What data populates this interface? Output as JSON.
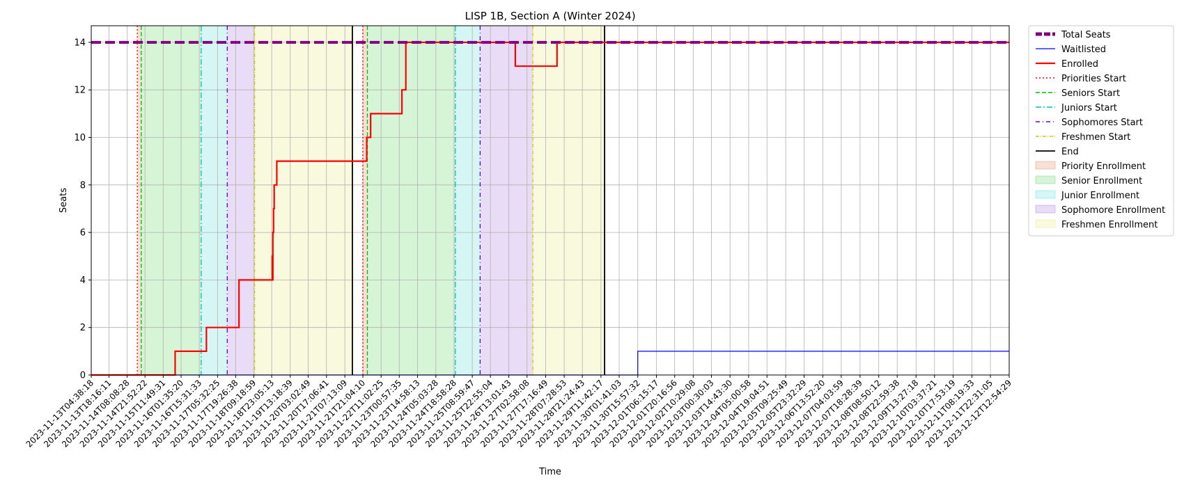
{
  "chart_data": {
    "type": "line",
    "title": "LISP 1B, Section A (Winter 2024)",
    "xlabel": "Time",
    "ylabel": "Seats",
    "ylim": [
      0,
      14.7
    ],
    "yticks": [
      0,
      2,
      4,
      6,
      8,
      10,
      12,
      14
    ],
    "xlim": [
      "2023-11-13T04:38:18",
      "2023-12-12T12:54:29"
    ],
    "grid": true,
    "legend_position": "outside-right",
    "xticks": [
      "2023-11-13T04:38:18",
      "2023-11-13T18:16:11",
      "2023-11-14T08:08:28",
      "2023-11-14T21:52:22",
      "2023-11-15T11:49:31",
      "2023-11-16T01:35:20",
      "2023-11-16T15:31:33",
      "2023-11-17T05:32:25",
      "2023-11-17T19:26:38",
      "2023-11-18T09:18:59",
      "2023-11-18T23:05:13",
      "2023-11-19T13:18:39",
      "2023-11-20T03:02:49",
      "2023-11-20T17:06:41",
      "2023-11-21T07:13:09",
      "2023-11-21T21:04:10",
      "2023-11-22T11:02:25",
      "2023-11-23T00:57:35",
      "2023-11-23T14:58:13",
      "2023-11-24T05:03:28",
      "2023-11-24T18:58:28",
      "2023-11-25T08:59:47",
      "2023-11-25T22:55:04",
      "2023-11-26T13:01:43",
      "2023-11-27T02:58:08",
      "2023-11-27T17:16:49",
      "2023-11-28T07:28:53",
      "2023-11-28T21:24:43",
      "2023-11-29T11:42:17",
      "2023-11-30T01:41:03",
      "2023-11-30T15:57:32",
      "2023-12-01T06:15:17",
      "2023-12-01T20:16:56",
      "2023-12-02T10:29:08",
      "2023-12-03T00:30:03",
      "2023-12-03T14:43:30",
      "2023-12-04T05:00:58",
      "2023-12-04T19:04:51",
      "2023-12-05T09:25:49",
      "2023-12-05T23:32:29",
      "2023-12-06T13:52:20",
      "2023-12-07T04:03:59",
      "2023-12-07T18:28:39",
      "2023-12-08T08:50:12",
      "2023-12-08T22:59:38",
      "2023-12-09T13:27:18",
      "2023-12-10T03:37:21",
      "2023-12-10T17:53:19",
      "2023-12-11T08:19:33",
      "2023-12-11T22:31:05",
      "2023-12-12T12:54:29"
    ],
    "series": [
      {
        "name": "Total Seats",
        "color": "#800080",
        "style": "dashed-thick",
        "x": [
          "2023-11-13T04:38:18",
          "2023-12-12T12:54:29"
        ],
        "y": [
          14,
          14
        ]
      },
      {
        "name": "Waitlisted",
        "color": "#0000ff",
        "style": "step",
        "x": [
          "2023-11-13T04:38:18",
          "2023-11-30T15:57:32",
          "2023-12-12T12:54:29"
        ],
        "y": [
          0,
          1,
          1
        ]
      },
      {
        "name": "Enrolled",
        "color": "#ff0000",
        "style": "step",
        "x": [
          "2023-11-13T04:38:18",
          "2023-11-15T21:00:00",
          "2023-11-16T21:00:00",
          "2023-11-17T22:00:00",
          "2023-11-18T23:30:00",
          "2023-11-18T23:45:00",
          "2023-11-19T00:00:00",
          "2023-11-19T00:30:00",
          "2023-11-19T01:00:00",
          "2023-11-19T01:30:00",
          "2023-11-19T03:00:00",
          "2023-11-22T00:00:00",
          "2023-11-22T03:00:00",
          "2023-11-22T07:30:00",
          "2023-11-23T03:00:00",
          "2023-11-23T06:00:00",
          "2023-11-26T18:00:00",
          "2023-11-28T02:00:00",
          "2023-12-12T12:54:29"
        ],
        "y": [
          0,
          1,
          2,
          4,
          5,
          4,
          6,
          7,
          8,
          8,
          9,
          10,
          11,
          11,
          12,
          14,
          13,
          14,
          14
        ]
      }
    ],
    "events": [
      {
        "name": "Priorities Start",
        "color": "#ff0000",
        "dash": "2,3",
        "x": [
          "2023-11-14T16:00:00",
          "2023-11-21T21:00:00"
        ]
      },
      {
        "name": "Seniors Start",
        "color": "#00bb00",
        "dash": "6,3",
        "x": [
          "2023-11-14T19:00:00",
          "2023-11-22T00:30:00"
        ]
      },
      {
        "name": "Juniors Start",
        "color": "#00bfbf",
        "dash": "8,3,2,3",
        "x": [
          "2023-11-16T17:00:00",
          "2023-11-24T20:00:00"
        ]
      },
      {
        "name": "Sophomores Start",
        "color": "#6000d8",
        "dash": "6,4,1,4",
        "x": [
          "2023-11-17T13:00:00",
          "2023-11-25T15:00:00"
        ]
      },
      {
        "name": "Freshmen Start",
        "color": "#d4c800",
        "dash": "5,2,1,2",
        "x": [
          "2023-11-18T10:00:00",
          "2023-11-27T07:30:00"
        ]
      },
      {
        "name": "End",
        "color": "#000000",
        "dash": "",
        "x": [
          "2023-11-21T13:00:00",
          "2023-11-29T14:30:00"
        ]
      }
    ],
    "periods": [
      {
        "name": "Priority Enrollment",
        "color": "#e88e6a",
        "ranges": [
          [
            "2023-11-14T16:00:00",
            "2023-11-14T19:00:00"
          ],
          [
            "2023-11-21T21:00:00",
            "2023-11-22T00:30:00"
          ]
        ]
      },
      {
        "name": "Senior Enrollment",
        "color": "#6cd96c",
        "ranges": [
          [
            "2023-11-14T19:00:00",
            "2023-11-16T17:00:00"
          ],
          [
            "2023-11-22T00:30:00",
            "2023-11-24T20:00:00"
          ]
        ]
      },
      {
        "name": "Junior Enrollment",
        "color": "#6ddde0",
        "ranges": [
          [
            "2023-11-16T17:00:00",
            "2023-11-17T13:00:00"
          ],
          [
            "2023-11-24T20:00:00",
            "2023-11-25T15:00:00"
          ]
        ]
      },
      {
        "name": "Sophomore Enrollment",
        "color": "#ad83e0",
        "ranges": [
          [
            "2023-11-17T13:00:00",
            "2023-11-18T10:00:00"
          ],
          [
            "2023-11-25T15:00:00",
            "2023-11-27T07:30:00"
          ]
        ]
      },
      {
        "name": "Freshmen Enrollment",
        "color": "#ebeb86",
        "ranges": [
          [
            "2023-11-18T10:00:00",
            "2023-11-21T13:00:00"
          ],
          [
            "2023-11-27T07:30:00",
            "2023-11-29T14:30:00"
          ]
        ]
      }
    ]
  }
}
